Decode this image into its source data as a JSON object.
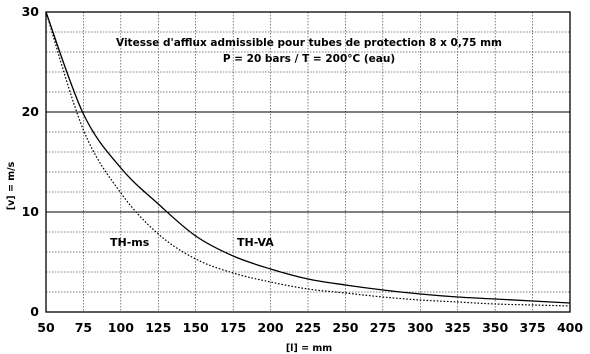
{
  "chart_data": {
    "type": "line",
    "title": "Vitesse d'afflux admissible pour tubes de protection 8 x 0,75 mm",
    "subtitle": "P = 20 bars  /  T = 200°C  (eau)",
    "xlabel": "[l] = mm",
    "ylabel": "[v] = m/s",
    "xlim": [
      50,
      400
    ],
    "ylim": [
      0,
      30
    ],
    "x_ticks": [
      50,
      75,
      100,
      125,
      150,
      175,
      200,
      225,
      250,
      275,
      300,
      325,
      350,
      375,
      400
    ],
    "y_ticks": [
      0,
      10,
      20,
      30
    ],
    "grid": true,
    "x": [
      50,
      75,
      100,
      125,
      150,
      175,
      200,
      225,
      250,
      275,
      300,
      325,
      350,
      375,
      400
    ],
    "series": [
      {
        "name": "TH-VA",
        "style": "solid",
        "values": [
          30,
          19.8,
          14.4,
          10.8,
          7.6,
          5.6,
          4.3,
          3.3,
          2.7,
          2.2,
          1.8,
          1.5,
          1.3,
          1.1,
          0.9
        ]
      },
      {
        "name": "TH-ms",
        "style": "dotted",
        "values": [
          30,
          18.2,
          11.9,
          7.8,
          5.3,
          3.9,
          3.0,
          2.3,
          1.9,
          1.5,
          1.2,
          1.0,
          0.8,
          0.7,
          0.6
        ]
      }
    ]
  }
}
